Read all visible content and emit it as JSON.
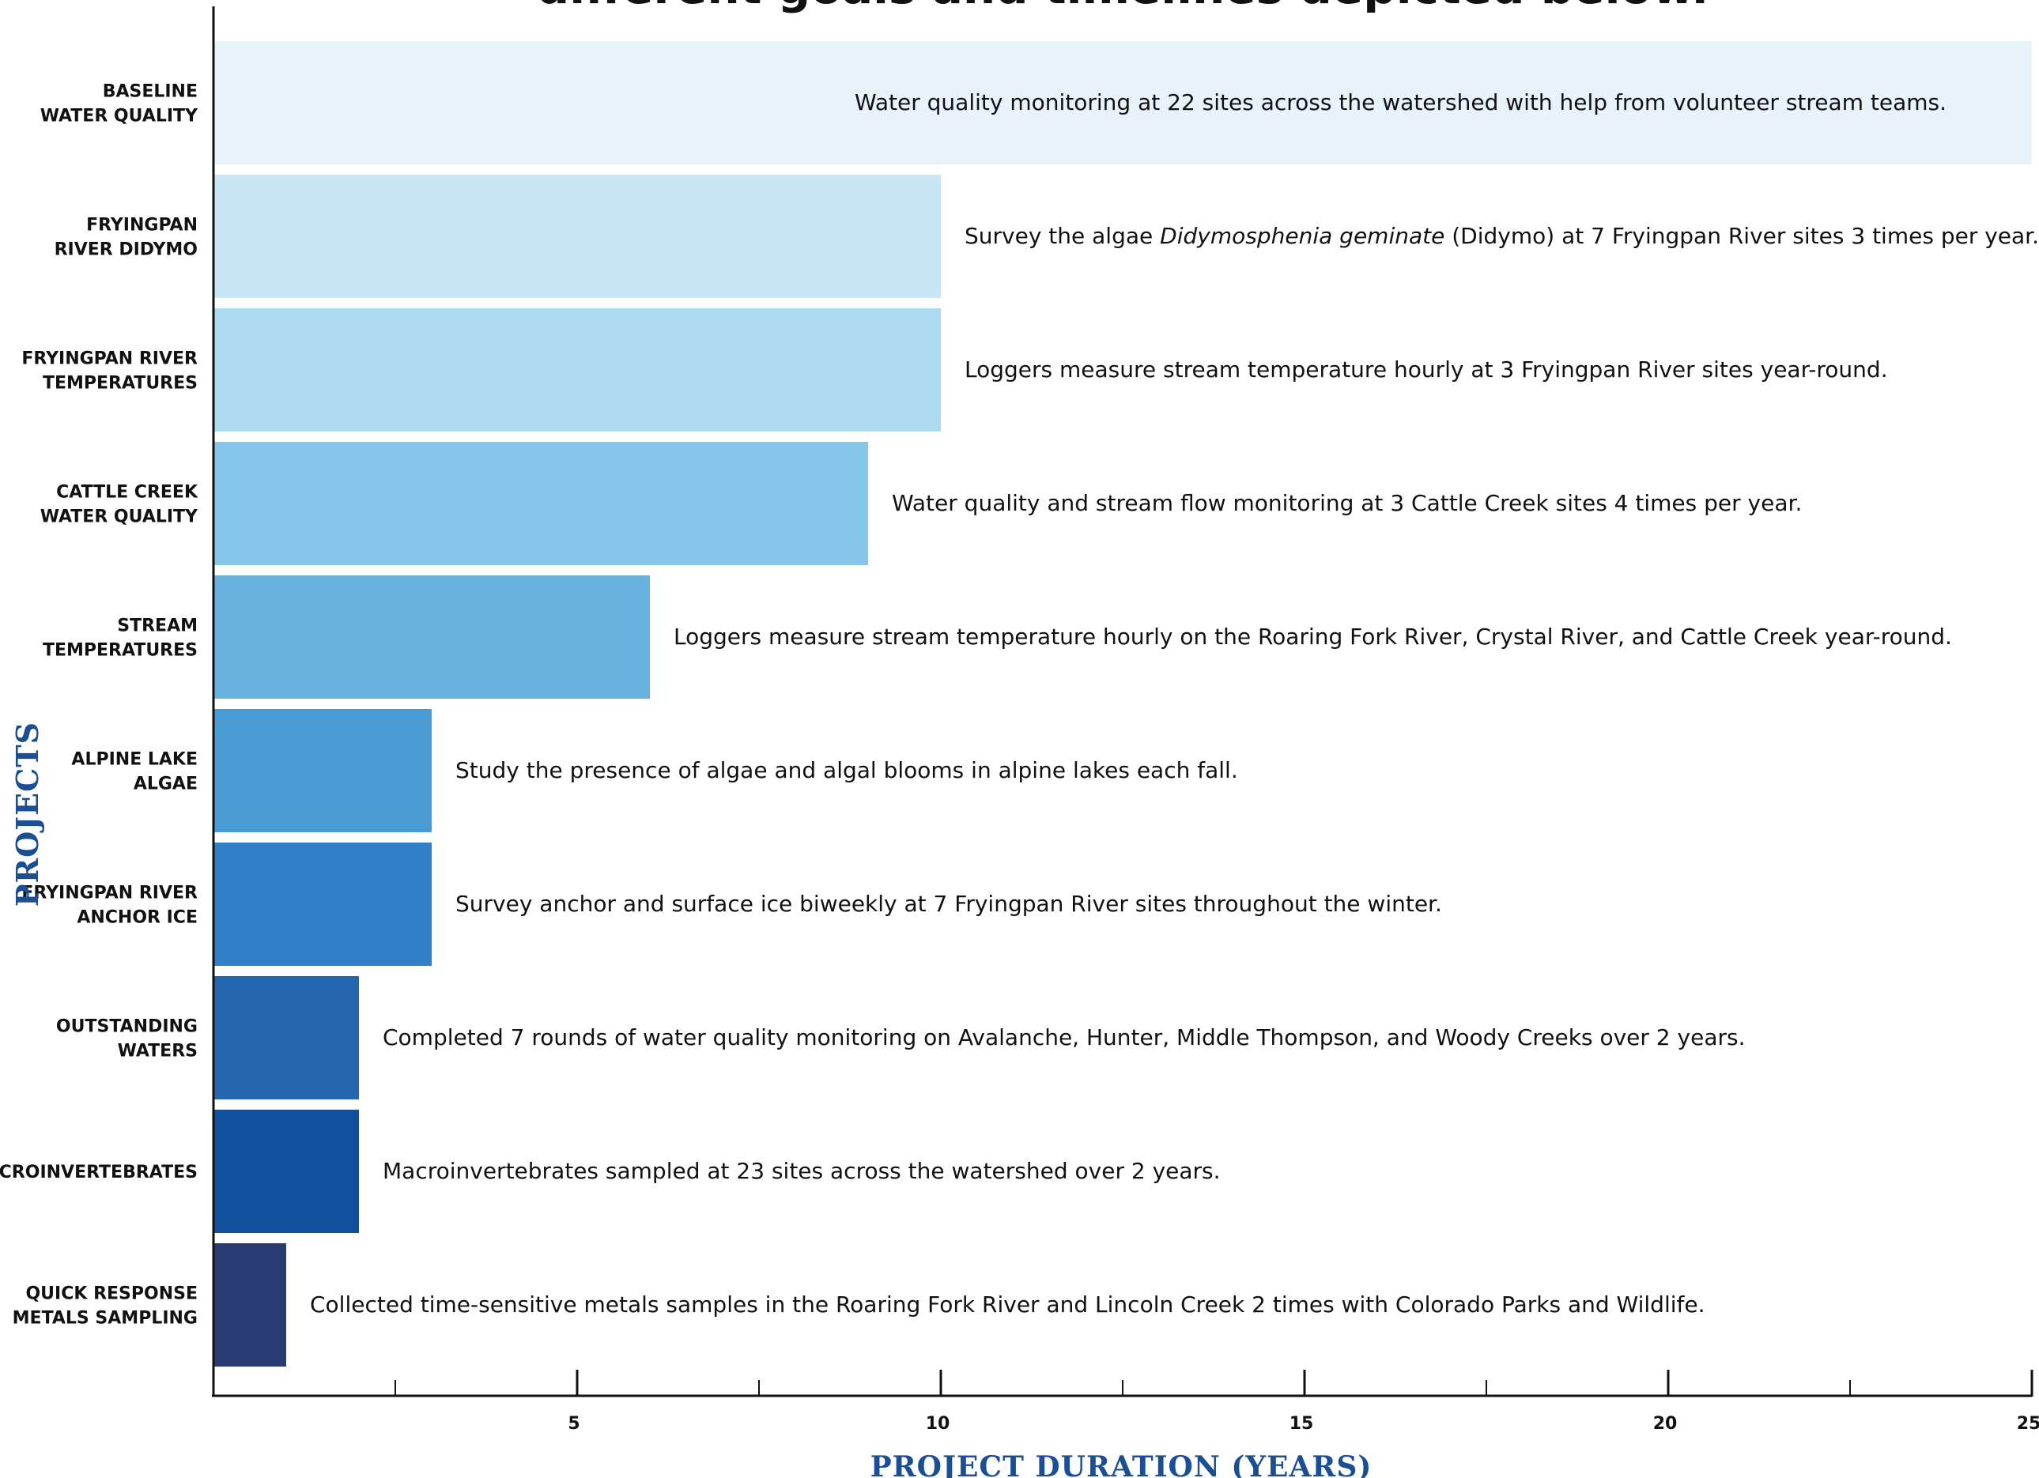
{
  "chart_data": {
    "type": "bar",
    "orientation": "horizontal",
    "title": "different goals and timelines depicted below.",
    "xlabel": "PROJECT DURATION (YEARS)",
    "ylabel": "PROJECTS",
    "xlim": [
      0,
      25
    ],
    "xticks": [
      5,
      10,
      15,
      20,
      25
    ],
    "xminor": [
      2.5,
      7.5,
      12.5,
      17.5,
      22.5
    ],
    "grid": false,
    "legend": "none",
    "categories": [
      [
        "BASELINE",
        "WATER QUALITY"
      ],
      [
        "FRYINGPAN",
        "RIVER DIDYMO"
      ],
      [
        "FRYINGPAN RIVER",
        "TEMPERATURES"
      ],
      [
        "CATTLE CREEK",
        "WATER QUALITY"
      ],
      [
        "STREAM",
        "TEMPERATURES"
      ],
      [
        "ALPINE LAKE",
        "ALGAE"
      ],
      [
        "FRYINGPAN RIVER",
        "ANCHOR ICE"
      ],
      [
        "OUTSTANDING",
        "WATERS"
      ],
      [
        "MACROINVERTEBRATES"
      ],
      [
        "QUICK RESPONSE",
        "METALS SAMPLING"
      ]
    ],
    "values": [
      25,
      10,
      10,
      9,
      6,
      3,
      3,
      2,
      2,
      1
    ],
    "colors": [
      "#e7f2f9",
      "#c9e6f7",
      "#abdaf2",
      "#86c7eb",
      "#67b2df",
      "#4a9bd4",
      "#2f80c6",
      "#2566b0",
      "#0f4f9b",
      "#283a73"
    ],
    "annotations": [
      [
        "Water quality monitoring at 22 sites across the watershed with help from volunteer stream teams."
      ],
      [
        "Survey the algae ",
        "Didymosphenia geminate",
        " (Didymo) at 7 Fryingpan River sites 3 times per year."
      ],
      [
        "Loggers measure stream temperature hourly at 3 Fryingpan River sites year-round."
      ],
      [
        "Water quality and stream flow monitoring at 3 Cattle Creek sites 4 times per year."
      ],
      [
        "Loggers measure stream temperature hourly on the Roaring Fork River, Crystal River, and Cattle Creek year-round."
      ],
      [
        "Study the presence of algae and algal blooms in alpine lakes each fall."
      ],
      [
        "Survey anchor and surface ice biweekly at 7 Fryingpan River sites throughout the winter."
      ],
      [
        "Completed 7 rounds of water quality monitoring on Avalanche, Hunter, Middle Thompson, and Woody Creeks over 2 years."
      ],
      [
        "Macroinvertebrates sampled at 23 sites across the watershed over 2 years."
      ],
      [
        "Collected time-sensitive metals samples in the Roaring Fork River and Lincoln Creek 2 times with Colorado Parks and Wildlife."
      ]
    ]
  }
}
